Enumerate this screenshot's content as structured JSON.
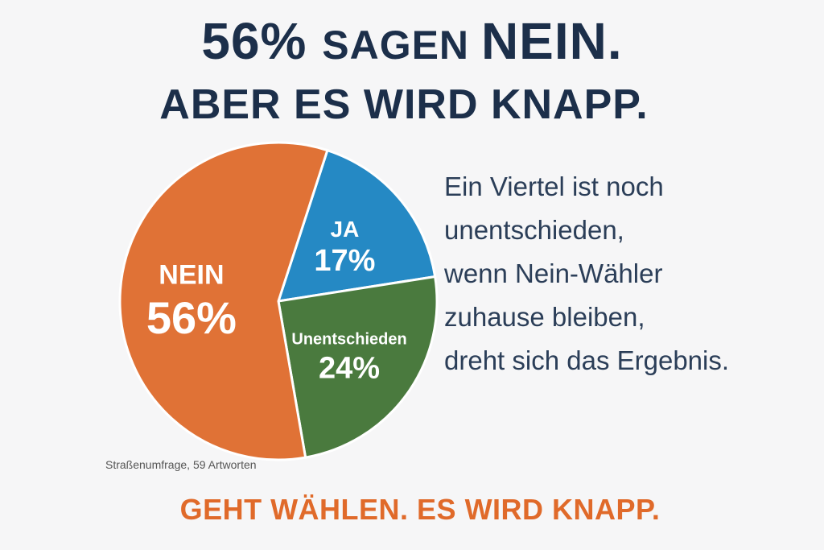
{
  "headline": {
    "line1_a": "56% ",
    "line1_b": "SAGEN ",
    "line1_c": "NEIN.",
    "line2": "ABER ES WIRD KNAPP."
  },
  "chart_data": {
    "type": "pie",
    "slices": [
      {
        "label": "JA",
        "value": 17,
        "display": "17%",
        "color": "#2589c4"
      },
      {
        "label": "Unentschieden",
        "value": 24,
        "display": "24%",
        "color": "#4a7a3e"
      },
      {
        "label": "NEIN",
        "value": 56,
        "display": "56%",
        "color": "#e07236"
      }
    ]
  },
  "side_text": [
    "Ein Viertel ist noch",
    "unentschieden,",
    "wenn Nein-Wähler",
    "zuhause bleiben,",
    "dreht sich das Ergebnis."
  ],
  "source": "Straßenumfrage, 59 Artworten",
  "cta": "GEHT WÄHLEN. ES WIRD KNAPP."
}
